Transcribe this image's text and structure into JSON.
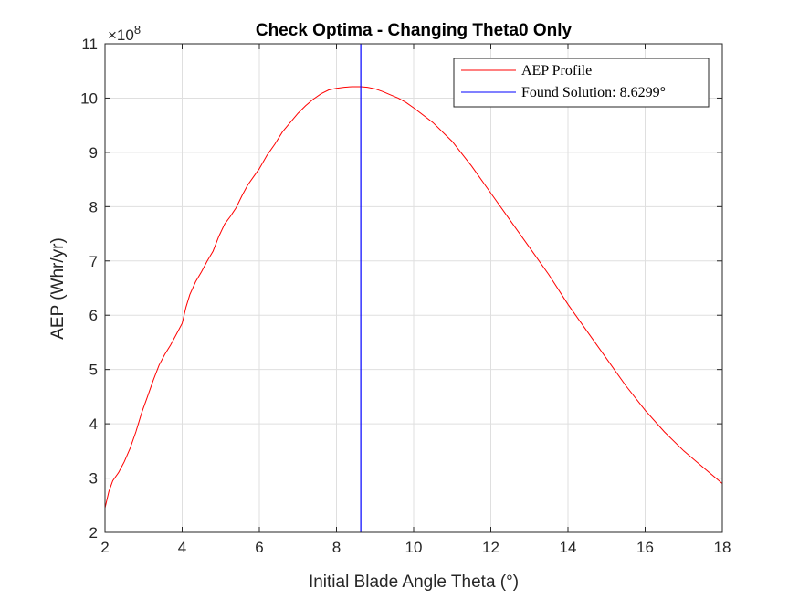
{
  "chart_data": {
    "type": "line",
    "title": "Check Optima - Changing Theta0 Only",
    "xlabel": "Initial Blade Angle Theta (°)",
    "ylabel": "AEP (Whr/yr)",
    "y_exponent_label": "×10",
    "y_exponent_power": "8",
    "xlim": [
      2,
      18
    ],
    "ylim": [
      2,
      11
    ],
    "y_scale_factor": 100000000,
    "x_ticks": [
      "2",
      "4",
      "6",
      "8",
      "10",
      "12",
      "14",
      "16",
      "18"
    ],
    "y_ticks": [
      "2",
      "3",
      "4",
      "5",
      "6",
      "7",
      "8",
      "9",
      "10",
      "11"
    ],
    "grid": true,
    "legend_position": "top-right",
    "series": [
      {
        "name": "AEP Profile",
        "color": "#ff0000",
        "x": [
          2.0,
          2.1,
          2.2,
          2.35,
          2.5,
          2.65,
          2.8,
          2.95,
          3.1,
          3.25,
          3.4,
          3.55,
          3.7,
          3.85,
          4.0,
          4.1,
          4.2,
          4.35,
          4.5,
          4.65,
          4.8,
          4.95,
          5.1,
          5.25,
          5.4,
          5.55,
          5.7,
          5.85,
          6.0,
          6.2,
          6.4,
          6.6,
          6.8,
          7.0,
          7.2,
          7.4,
          7.6,
          7.8,
          8.0,
          8.2,
          8.4,
          8.6,
          8.63,
          8.8,
          9.0,
          9.2,
          9.4,
          9.6,
          9.8,
          10.0,
          10.5,
          11.0,
          11.5,
          12.0,
          12.5,
          13.0,
          13.5,
          14.0,
          14.5,
          15.0,
          15.5,
          16.0,
          16.5,
          17.0,
          17.5,
          18.0
        ],
        "y": [
          2.45,
          2.75,
          2.95,
          3.1,
          3.3,
          3.55,
          3.85,
          4.2,
          4.5,
          4.8,
          5.08,
          5.28,
          5.45,
          5.65,
          5.85,
          6.15,
          6.38,
          6.62,
          6.8,
          7.0,
          7.18,
          7.45,
          7.68,
          7.82,
          7.98,
          8.2,
          8.4,
          8.55,
          8.7,
          8.95,
          9.15,
          9.38,
          9.55,
          9.72,
          9.86,
          9.98,
          10.08,
          10.15,
          10.18,
          10.2,
          10.21,
          10.21,
          10.21,
          10.2,
          10.17,
          10.12,
          10.06,
          10.0,
          9.92,
          9.82,
          9.55,
          9.2,
          8.75,
          8.25,
          7.75,
          7.25,
          6.75,
          6.2,
          5.7,
          5.2,
          4.7,
          4.25,
          3.85,
          3.5,
          3.2,
          2.9
        ]
      },
      {
        "name": "Found Solution: 8.6299°",
        "color": "#0000ff",
        "type": "vertical-line",
        "x_value": 8.6299
      }
    ]
  }
}
